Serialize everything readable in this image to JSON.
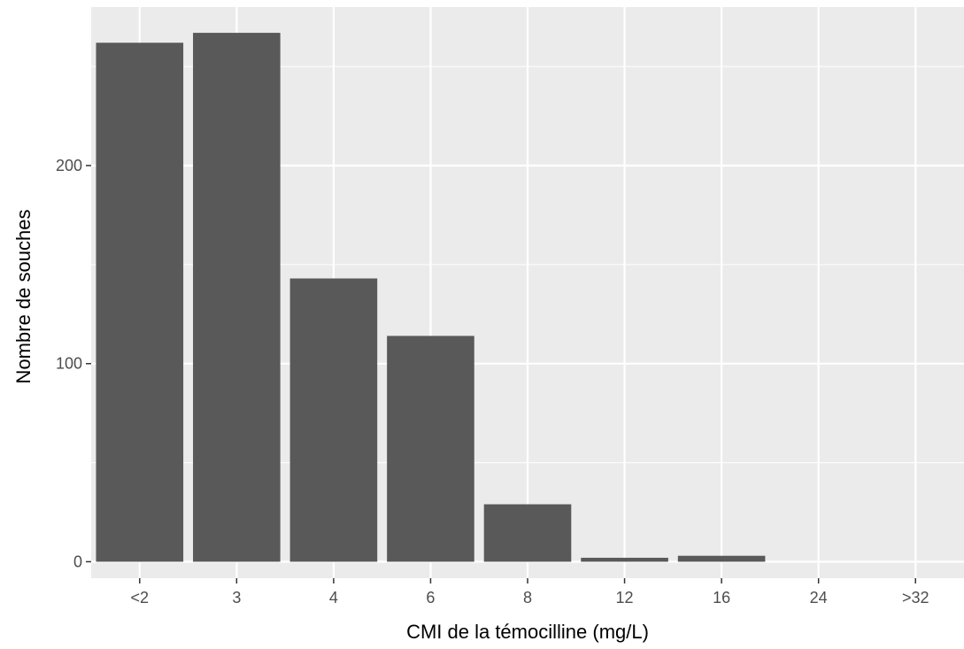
{
  "chart_data": {
    "type": "bar",
    "title": "",
    "xlabel": "CMI de la témocilline (mg/L)",
    "ylabel": "Nombre de souches",
    "categories": [
      "<2",
      "3",
      "4",
      "6",
      "8",
      "12",
      "16",
      "24",
      ">32"
    ],
    "values": [
      262,
      267,
      143,
      114,
      29,
      2,
      3,
      0,
      0
    ],
    "ylim": [
      -8.3,
      280
    ],
    "yticks": [
      0,
      100,
      200
    ],
    "y_minor_gridlines": [
      50,
      150,
      250
    ],
    "grid": true,
    "legend": "none",
    "colors": {
      "panel": "#ebebeb",
      "grid": "#ffffff",
      "bar": "#595959",
      "tick": "#333333"
    }
  }
}
